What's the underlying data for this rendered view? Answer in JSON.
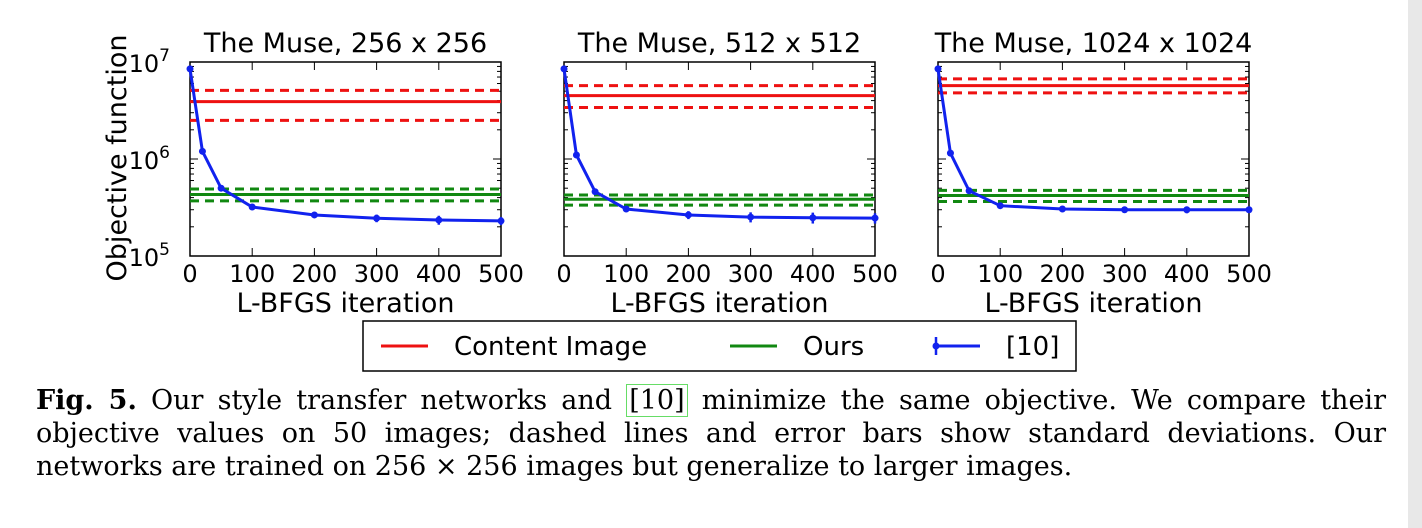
{
  "chart_data": [
    {
      "type": "line",
      "title": "The Muse, 256 x 256",
      "xlabel": "L-BFGS iteration",
      "ylabel": "Objective function",
      "xlim": [
        0,
        500
      ],
      "ylim": [
        100000,
        10000000
      ],
      "yscale": "log",
      "xticks": [
        "0",
        "100",
        "200",
        "300",
        "400",
        "500"
      ],
      "yticks": [
        {
          "base": "10",
          "exp": "5"
        },
        {
          "base": "10",
          "exp": "6"
        },
        {
          "base": "10",
          "exp": "7"
        }
      ],
      "hlines": [
        {
          "series": "Content Image",
          "mean": 3900000,
          "lower": 2500000,
          "upper": 5100000
        },
        {
          "series": "Ours",
          "mean": 430000,
          "lower": 370000,
          "upper": 490000
        }
      ],
      "series": [
        {
          "name": "[10]",
          "x": [
            0,
            20,
            50,
            100,
            200,
            300,
            400,
            500
          ],
          "y": [
            8500000,
            1200000,
            500000,
            320000,
            265000,
            245000,
            235000,
            230000
          ],
          "err": [
            0,
            0,
            0,
            15000,
            18000,
            22000,
            25000,
            22000
          ]
        }
      ]
    },
    {
      "type": "line",
      "title": "The Muse, 512 x 512",
      "xlabel": "L-BFGS iteration",
      "ylabel": "",
      "xlim": [
        0,
        500
      ],
      "ylim": [
        100000,
        10000000
      ],
      "yscale": "log",
      "xticks": [
        "0",
        "100",
        "200",
        "300",
        "400",
        "500"
      ],
      "yticks": [],
      "hlines": [
        {
          "series": "Content Image",
          "mean": 4500000,
          "lower": 3400000,
          "upper": 5700000
        },
        {
          "series": "Ours",
          "mean": 385000,
          "lower": 335000,
          "upper": 425000
        }
      ],
      "series": [
        {
          "name": "[10]",
          "x": [
            0,
            20,
            50,
            100,
            200,
            300,
            400,
            500
          ],
          "y": [
            8500000,
            1100000,
            460000,
            305000,
            265000,
            252000,
            248000,
            246000
          ],
          "err": [
            0,
            0,
            0,
            15000,
            25000,
            30000,
            32000,
            30000
          ]
        }
      ]
    },
    {
      "type": "line",
      "title": "The Muse, 1024 x 1024",
      "xlabel": "L-BFGS iteration",
      "ylabel": "",
      "xlim": [
        0,
        500
      ],
      "ylim": [
        100000,
        10000000
      ],
      "yscale": "log",
      "xticks": [
        "0",
        "100",
        "200",
        "300",
        "400",
        "500"
      ],
      "yticks": [],
      "hlines": [
        {
          "series": "Content Image",
          "mean": 5700000,
          "lower": 4800000,
          "upper": 6700000
        },
        {
          "series": "Ours",
          "mean": 420000,
          "lower": 365000,
          "upper": 475000
        }
      ],
      "series": [
        {
          "name": "[10]",
          "x": [
            0,
            20,
            50,
            100,
            200,
            300,
            400,
            500
          ],
          "y": [
            8500000,
            1150000,
            470000,
            330000,
            305000,
            300000,
            300000,
            300000
          ],
          "err": [
            0,
            0,
            0,
            15000,
            20000,
            22000,
            24000,
            22000
          ]
        }
      ]
    }
  ],
  "legend": {
    "placement": "bottom-center",
    "entries": [
      {
        "label": "Content Image",
        "color": "#ee1111",
        "style": "line"
      },
      {
        "label": "Ours",
        "color": "#118811",
        "style": "line"
      },
      {
        "label": "[10]",
        "color": "#1122ee",
        "style": "errorbar"
      }
    ]
  },
  "colors": {
    "content": "#ee1111",
    "ours": "#118811",
    "baseline": "#1122ee"
  },
  "caption": {
    "label": "Fig. 5.",
    "text_1": " Our style transfer networks and ",
    "cite": "[10]",
    "text_2": " minimize the same objective. We compare their objective values on 50 images; dashed lines and error bars show standard deviations. Our networks are trained on 256 × 256 images but generalize to larger images."
  }
}
